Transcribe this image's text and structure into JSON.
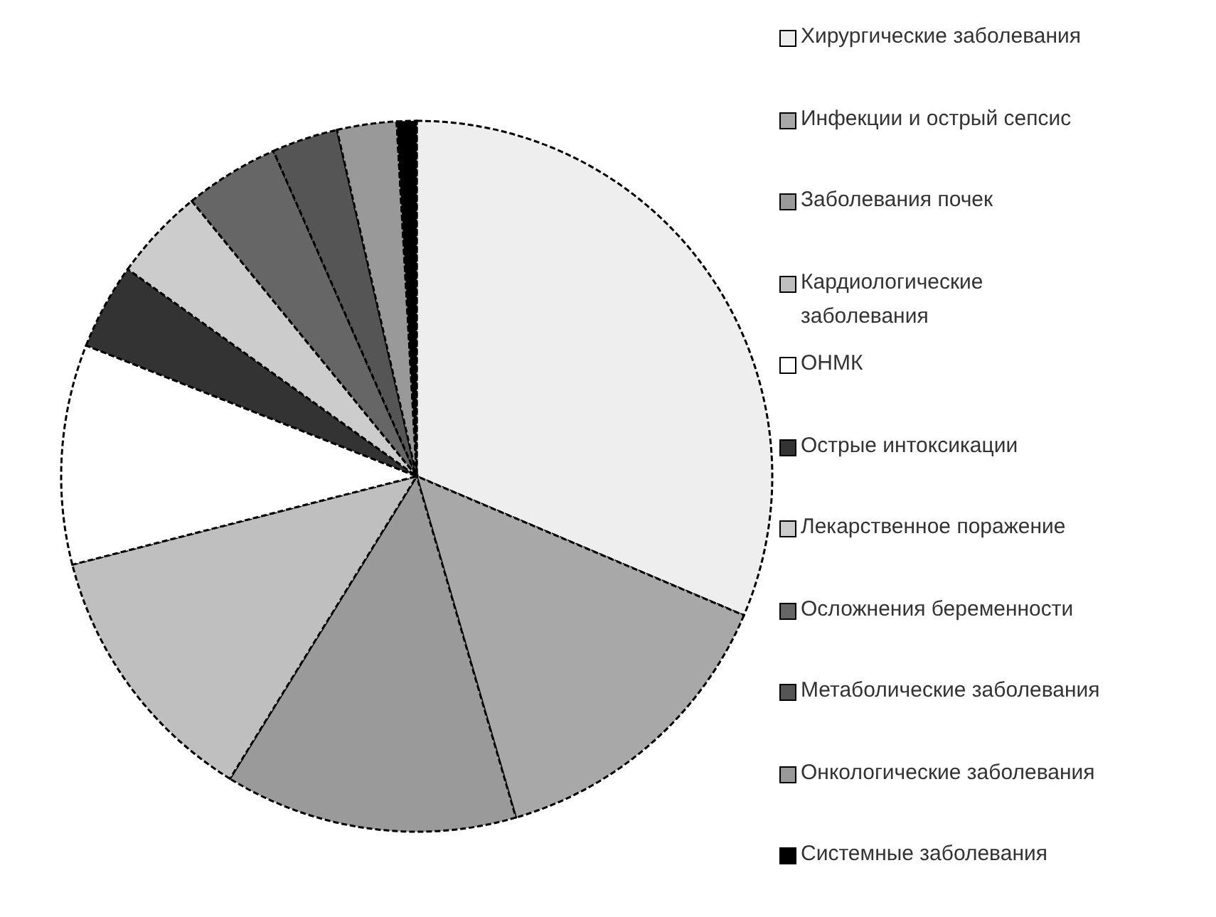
{
  "chart_data": {
    "type": "pie",
    "categories": [
      "Хирургические заболевания",
      "Инфекции и острый сепсис",
      "Заболевания почек",
      "Кардиологические заболевания",
      "ОНМК",
      "Острые интоксикации",
      "Лекарственное поражение",
      "Осложнения беременности",
      "Метаболические заболевания",
      "Онкологические заболевания",
      "Системные заболевания"
    ],
    "values": [
      31.4,
      14.1,
      13.3,
      12.2,
      10.0,
      3.9,
      4.2,
      4.3,
      3.0,
      2.7,
      0.9
    ],
    "colors": [
      "#eeeeee",
      "#a8a8a8",
      "#9a9a9a",
      "#bfbfbf",
      "#ffffff",
      "#333333",
      "#cccccc",
      "#666666",
      "#555555",
      "#999999",
      "#000000"
    ],
    "legend": "right"
  }
}
